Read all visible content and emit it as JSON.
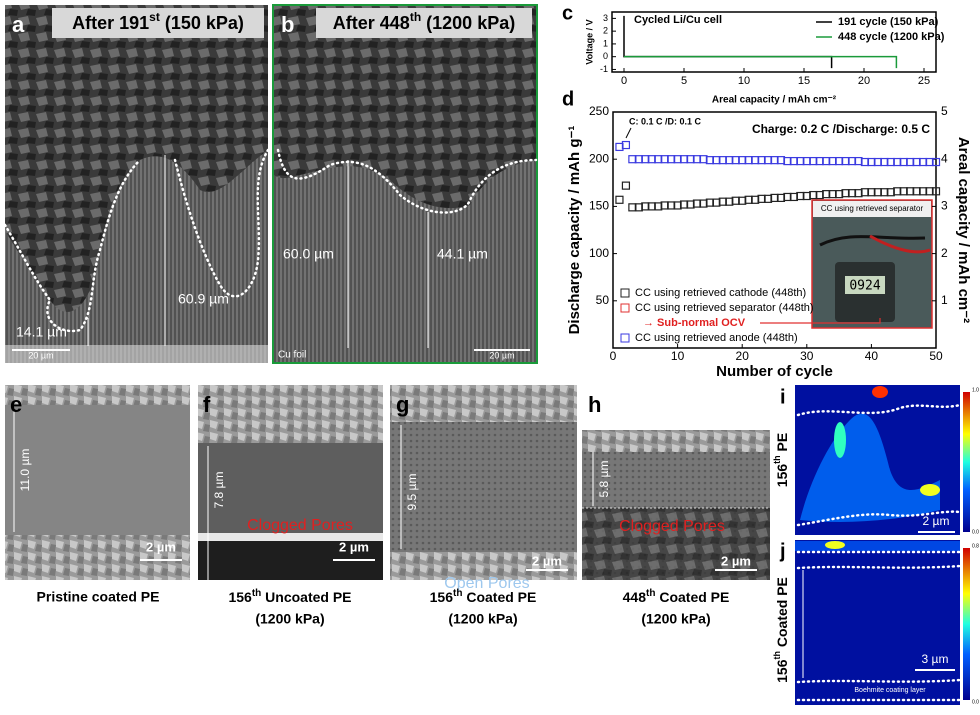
{
  "panels": {
    "a": {
      "label": "a",
      "caption": [
        "After 191",
        "st",
        " (150 kPa)"
      ],
      "thickness_1": "60.9 µm",
      "thickness_2": "14.1 µm",
      "scale": "20 µm"
    },
    "b": {
      "label": "b",
      "caption": [
        "After 448",
        "th",
        " (1200 kPa)"
      ],
      "thickness_1": "60.0 µm",
      "thickness_2": "44.1 µm",
      "substrate": "Cu foil",
      "scale": "20 µm"
    },
    "c": {
      "label": "c"
    },
    "d": {
      "label": "d"
    },
    "e": {
      "label": "e",
      "thickness": "11.0 µm",
      "scale": "2 µm",
      "caption": [
        "Pristine coated PE"
      ]
    },
    "f": {
      "label": "f",
      "thickness": "7.8 µm",
      "note": "Clogged Pores",
      "scale": "2 µm",
      "caption": [
        "156",
        "th",
        " Uncoated PE",
        "(1200 kPa)"
      ]
    },
    "g": {
      "label": "g",
      "thickness": "9.5 µm",
      "note": "Open Pores",
      "scale": "2 µm",
      "caption": [
        "156",
        "th",
        " Coated PE",
        "(1200 kPa)"
      ]
    },
    "h": {
      "label": "h",
      "thickness": "5.8 µm",
      "note": "Clogged Pores",
      "scale": "2 µm",
      "caption": [
        "448",
        "th",
        " Coated PE",
        "(1200 kPa)"
      ]
    },
    "i": {
      "label": "i",
      "side": [
        "156",
        "th",
        " PE"
      ],
      "scale": "2 µm",
      "colorbar": [
        "1.0",
        "0.0"
      ]
    },
    "j": {
      "label": "j",
      "side": [
        "156",
        "th",
        " Coated PE"
      ],
      "scale": "3 µm",
      "note": "Boehmite coating layer",
      "colorbar": [
        "0.8",
        "0.0"
      ]
    }
  },
  "chart_data": [
    {
      "type": "line",
      "annotation": "Cycled Li/Cu cell",
      "x_label": "Areal capacity / mAh cm⁻²",
      "y_label": "Voltage / V",
      "xlim": [
        -1,
        26
      ],
      "xticks": [
        0,
        5,
        10,
        15,
        20,
        25
      ],
      "ylim": [
        -1.2,
        3.5
      ],
      "yticks": [
        -1,
        0,
        1,
        2,
        3
      ],
      "legend": "upper right",
      "series": [
        {
          "name": "191 cycle (150 kPa)",
          "color": "#000000",
          "x": [
            0,
            0,
            0.3,
            17.3,
            17.3
          ],
          "values": [
            3.2,
            0,
            0,
            0,
            -0.9
          ]
        },
        {
          "name": "448 cycle (1200 kPa)",
          "color": "#1a9a3a",
          "x": [
            0,
            0.3,
            22.7,
            22.7
          ],
          "values": [
            0,
            0,
            0,
            -0.9
          ]
        }
      ]
    },
    {
      "type": "scatter",
      "x_label": "Number of cycle",
      "y_label": "Discharge capacity / mAh g⁻¹",
      "y2_label": "Areal capacity / mAh cm⁻²",
      "annotations": [
        "C: 0.1 C /D: 0.1 C",
        "Charge: 0.2 C /Discharge: 0.5 C",
        "→ Sub-normal OCV"
      ],
      "inset": {
        "title": "CC using retrieved separator",
        "display": "0924"
      },
      "xlim": [
        0,
        50
      ],
      "xticks": [
        0,
        10,
        20,
        30,
        40,
        50
      ],
      "ylim": [
        0,
        250
      ],
      "yticks": [
        50,
        100,
        150,
        200,
        250
      ],
      "y2lim": [
        0,
        5
      ],
      "y2ticks": [
        1,
        2,
        3,
        4,
        5
      ],
      "legend": "lower left",
      "x": [
        1,
        2,
        3,
        4,
        5,
        6,
        7,
        8,
        9,
        10,
        11,
        12,
        13,
        14,
        15,
        16,
        17,
        18,
        19,
        20,
        21,
        22,
        23,
        24,
        25,
        26,
        27,
        28,
        29,
        30,
        31,
        32,
        33,
        34,
        35,
        36,
        37,
        38,
        39,
        40,
        41,
        42,
        43,
        44,
        45,
        46,
        47,
        48,
        49,
        50
      ],
      "series": [
        {
          "name": "CC using retrieved cathode (448th)",
          "color": "#222222",
          "values": [
            157,
            172,
            149,
            149,
            150,
            150,
            150,
            151,
            151,
            151,
            152,
            152,
            153,
            153,
            154,
            154,
            155,
            155,
            156,
            156,
            157,
            157,
            158,
            158,
            159,
            159,
            160,
            160,
            161,
            161,
            162,
            162,
            163,
            163,
            163,
            164,
            164,
            164,
            165,
            165,
            165,
            165,
            165,
            166,
            166,
            166,
            166,
            166,
            166,
            166
          ]
        },
        {
          "name": "CC using retrieved separator (448th)",
          "color": "#e03030",
          "values": []
        },
        {
          "name": "CC using retrieved anode (448th)",
          "color": "#3a3ae0",
          "values": [
            213,
            215,
            200,
            200,
            200,
            200,
            200,
            200,
            200,
            200,
            200,
            200,
            200,
            200,
            199,
            199,
            199,
            199,
            199,
            199,
            199,
            199,
            199,
            199,
            199,
            199,
            198,
            198,
            198,
            198,
            198,
            198,
            198,
            198,
            198,
            198,
            198,
            198,
            197,
            197,
            197,
            197,
            197,
            197,
            197,
            197,
            197,
            197,
            197,
            197
          ]
        }
      ]
    }
  ]
}
